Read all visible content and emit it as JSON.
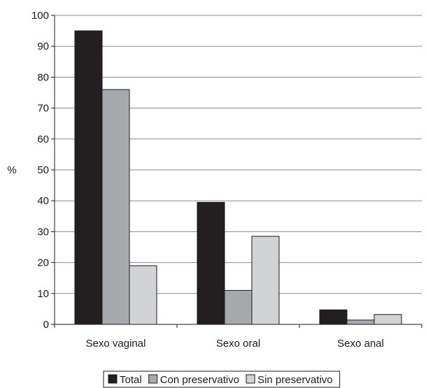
{
  "chart_data": {
    "type": "bar",
    "title": "",
    "xlabel": "",
    "ylabel": "%",
    "ylim": [
      0,
      100
    ],
    "yticks": [
      0,
      10,
      20,
      30,
      40,
      50,
      60,
      70,
      80,
      90,
      100
    ],
    "grid": true,
    "legend_position": "bottom",
    "categories": [
      "Sexo vaginal",
      "Sexo oral",
      "Sexo anal"
    ],
    "series": [
      {
        "name": "Total",
        "color": "#231f20",
        "values": [
          95,
          39.5,
          4.7
        ]
      },
      {
        "name": "Con preservativo",
        "color": "#a7a9ac",
        "values": [
          76,
          11,
          1.4
        ]
      },
      {
        "name": "Sin preservativo",
        "color": "#d1d3d4",
        "values": [
          19,
          28.5,
          3.2
        ]
      }
    ]
  }
}
